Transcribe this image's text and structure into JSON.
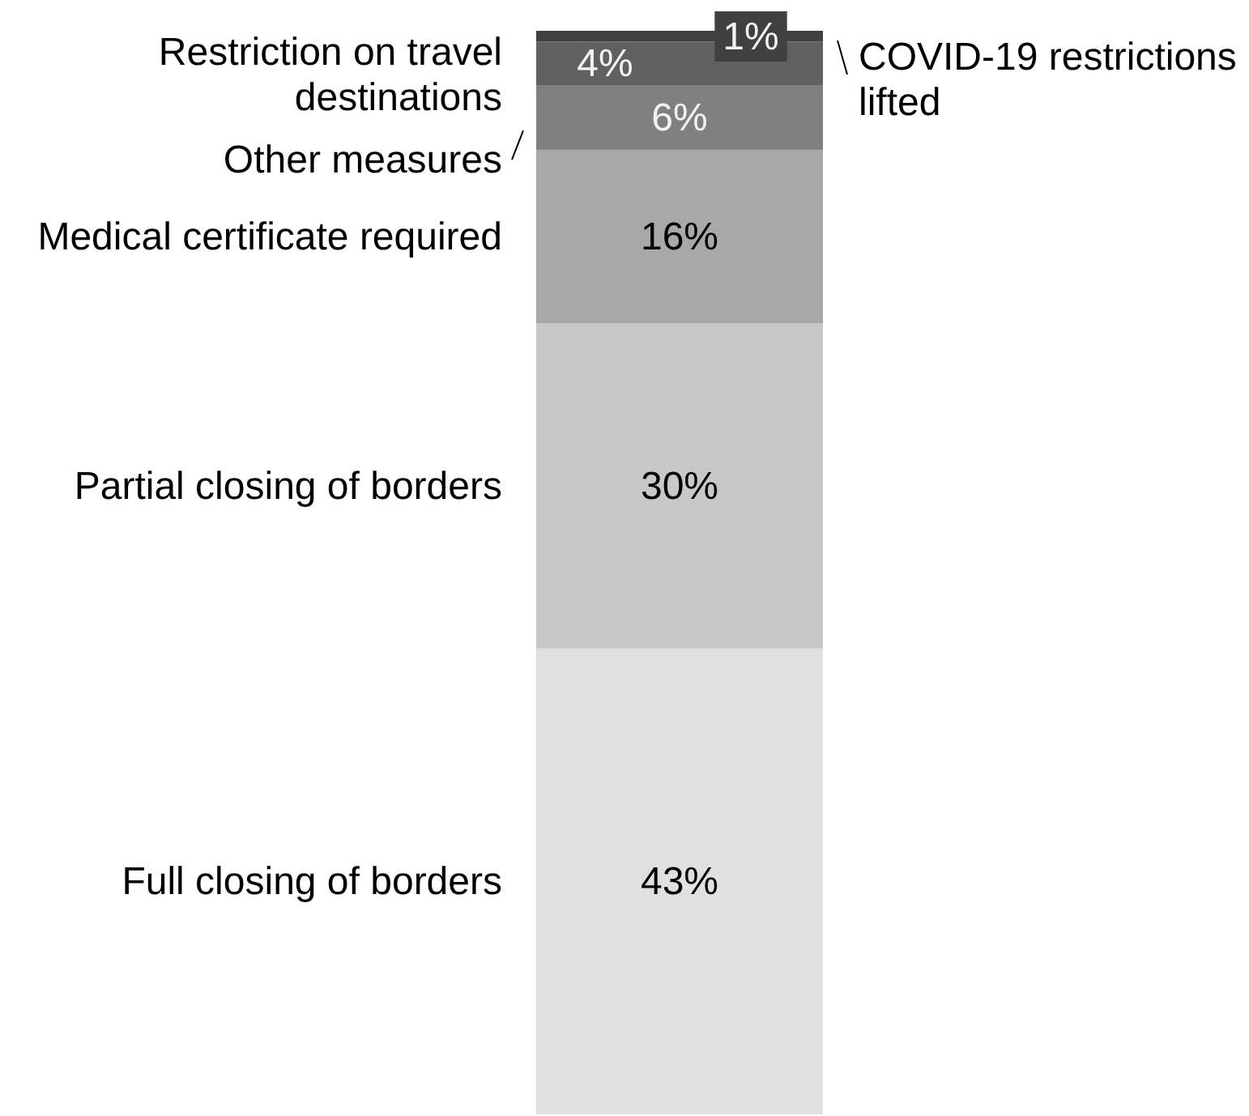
{
  "chart_data": {
    "type": "bar",
    "stacked": true,
    "categories": [
      null
    ],
    "series": [
      {
        "name": "Full closing of borders",
        "color": "#e0e0e0",
        "values": [
          43
        ],
        "value_labels": [
          "43%"
        ]
      },
      {
        "name": "Partial closing of borders",
        "color": "#c8c8c8",
        "values": [
          30
        ],
        "value_labels": [
          "30%"
        ]
      },
      {
        "name": "Medical certificate required",
        "color": "#a8a8a8",
        "values": [
          16
        ],
        "value_labels": [
          "16%"
        ]
      },
      {
        "name": "Other measures",
        "color": "#808080",
        "values": [
          6
        ],
        "value_labels": [
          "6%"
        ]
      },
      {
        "name": "Restriction on travel destinations",
        "color": "#606060",
        "values": [
          4
        ],
        "value_labels": [
          "4%"
        ]
      },
      {
        "name": "COVID-19 restrictions lifted",
        "color": "#404040",
        "values": [
          1
        ],
        "value_labels": [
          "1%"
        ]
      }
    ]
  }
}
